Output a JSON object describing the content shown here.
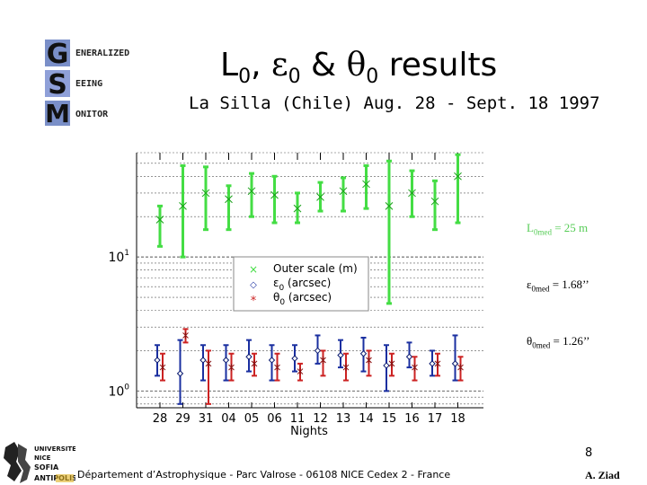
{
  "logo": {
    "letters": [
      "G",
      "S",
      "M"
    ],
    "words": [
      "ENERALIZED",
      "EEING",
      "ONITOR"
    ]
  },
  "title": {
    "main": "L",
    "sub0": "0",
    "comma": ", ",
    "eps": "ε",
    "eps_sub": "0",
    "amp": " & ",
    "theta": "θ",
    "theta_sub": "0",
    "rest": " results"
  },
  "subtitle": "La Silla (Chile) Aug. 28 - Sept. 18 1997",
  "notes": {
    "l0": {
      "sym": "L",
      "sub": "0med",
      "value": " = 25 m"
    },
    "e0": {
      "sym": "ε",
      "sub": "0med",
      "value": " = 1.68’’"
    },
    "t0": {
      "sym": "θ",
      "sub": "0med",
      "value": " = 1.26’’"
    }
  },
  "page_number": "8",
  "footer": "Département d’Astrophysique - Parc Valrose - 06108 NICE Cedex 2 - France",
  "author": "A. Ziad",
  "university_logo": [
    "UNIVERSITE",
    "NICE",
    "SOFIA",
    "ANTIPOLIS"
  ],
  "colors": {
    "l0": "#44dd44",
    "e0": "#1a2fa0",
    "t0": "#cc2222"
  },
  "chart_data": {
    "type": "scatter",
    "xlabel": "Nights",
    "categories": [
      "28",
      "29",
      "31",
      "04",
      "05",
      "06",
      "11",
      "12",
      "13",
      "14",
      "15",
      "16",
      "17",
      "18"
    ],
    "y_scale": "log",
    "ylim": [
      0.75,
      60
    ],
    "y_tick_labels": [
      {
        "value": 10,
        "base": "10",
        "exp": "1"
      },
      {
        "value": 1,
        "base": "10",
        "exp": "0"
      }
    ],
    "legend": {
      "placement": "center",
      "entries": [
        {
          "marker": "×",
          "label": "Outer scale (m)",
          "sym": "",
          "sub": ""
        },
        {
          "marker": "◇",
          "label": " (arcsec)",
          "sym": "ε",
          "sub": "0"
        },
        {
          "marker": "*",
          "label": " (arcsec)",
          "sym": "θ",
          "sub": "0"
        }
      ]
    },
    "series": [
      {
        "name": "Outer scale (m)",
        "color": "#44dd44",
        "marker": "cross",
        "values": [
          19,
          24,
          30,
          27,
          31,
          29,
          23,
          28,
          31,
          35,
          24,
          30,
          26,
          40
        ],
        "low": [
          12,
          10,
          16,
          16,
          20,
          18,
          18,
          22,
          22,
          23,
          4.5,
          20,
          16,
          18
        ],
        "high": [
          24,
          48,
          47,
          34,
          42,
          40,
          30,
          36,
          39,
          48,
          52,
          44,
          37,
          58
        ]
      },
      {
        "name": "ε0 (arcsec)",
        "color": "#1a2fa0",
        "marker": "diamond",
        "values": [
          1.7,
          1.35,
          1.7,
          1.7,
          1.8,
          1.7,
          1.75,
          2.0,
          1.85,
          1.9,
          1.55,
          1.8,
          1.6,
          1.6
        ],
        "low": [
          1.3,
          0.8,
          1.2,
          1.2,
          1.4,
          1.2,
          1.4,
          1.6,
          1.5,
          1.4,
          1.0,
          1.5,
          1.3,
          1.2
        ],
        "high": [
          2.2,
          2.4,
          2.2,
          2.2,
          2.4,
          2.2,
          2.2,
          2.6,
          2.4,
          2.5,
          2.2,
          2.3,
          2.0,
          2.6
        ]
      },
      {
        "name": "θ0 (arcsec)",
        "color": "#cc2222",
        "marker": "star",
        "values": [
          1.5,
          2.6,
          1.6,
          1.5,
          1.6,
          1.5,
          1.4,
          1.7,
          1.5,
          1.7,
          1.6,
          1.5,
          1.6,
          1.5
        ],
        "low": [
          1.2,
          2.3,
          0.8,
          1.2,
          1.3,
          1.2,
          1.2,
          1.3,
          1.2,
          1.3,
          1.3,
          1.2,
          1.3,
          1.2
        ],
        "high": [
          1.9,
          2.9,
          2.0,
          1.9,
          1.9,
          1.9,
          1.6,
          2.0,
          1.9,
          2.0,
          1.9,
          1.8,
          1.9,
          1.8
        ]
      }
    ]
  }
}
